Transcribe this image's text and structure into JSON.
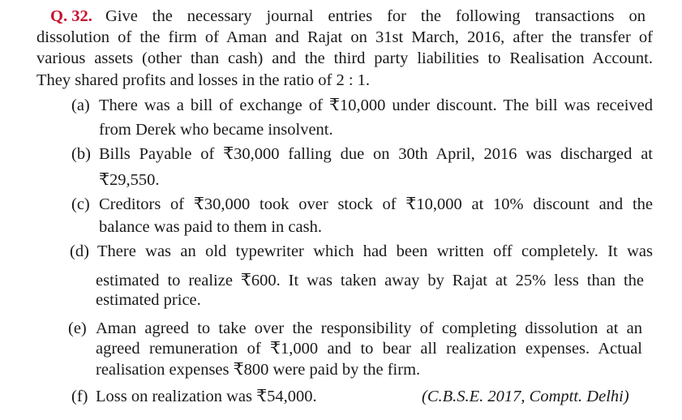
{
  "question": {
    "number": "Q. 32.",
    "intro_lines": [
      "Give the necessary journal entries for the following transactions on",
      "dissolution of the firm of Aman and Rajat on 31st March, 2016, after the transfer of",
      "various assets (other than cash) and the third party liabilities to Realisation Account.",
      "They shared profits and losses in the ratio of 2 : 1."
    ],
    "items": [
      {
        "label": "(a)",
        "lines": [
          "There was a bill of exchange of ₹10,000 under discount. The bill was received",
          "from Derek who became insolvent."
        ]
      },
      {
        "label": "(b)",
        "lines": [
          "Bills Payable of ₹30,000 falling due on 30th April, 2016 was discharged at",
          "₹29,550."
        ]
      },
      {
        "label": "(c)",
        "lines": [
          "Creditors of ₹30,000 took over stock of ₹10,000 at 10% discount and the",
          "balance was paid to them in cash."
        ]
      },
      {
        "label": "(d)",
        "lines": [
          "There was an old typewriter which had been written off completely. It was",
          "estimated to realize ₹600. It was taken away by Rajat at 25% less than the",
          "estimated price."
        ]
      },
      {
        "label": "(e)",
        "lines": [
          "Aman agreed to take over the responsibility of completing dissolution at an",
          "agreed remuneration of ₹1,000 and to bear all realization expenses. Actual",
          "realisation expenses ₹800 were paid by the firm."
        ]
      },
      {
        "label": "(f)",
        "lines": [
          "Loss on realization was ₹54,000."
        ]
      }
    ],
    "source": "(C.B.S.E. 2017, Comptt. Delhi)"
  },
  "colors": {
    "question_number": "#c8102e",
    "text": "#1a1a1a"
  }
}
